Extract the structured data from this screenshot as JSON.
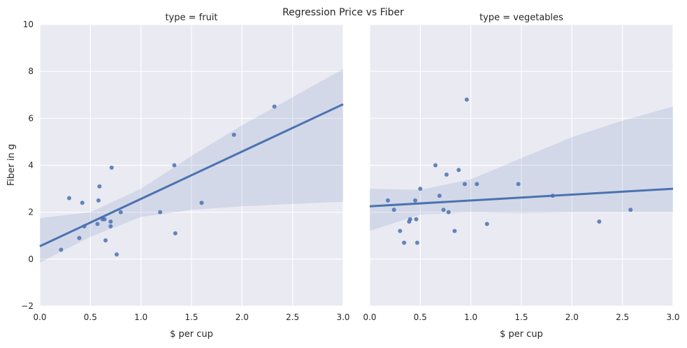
{
  "figure": {
    "suptitle": "Regression Price vs Fiber",
    "ylabel": "Fiber in g"
  },
  "colors": {
    "background": "#EAEAF2",
    "grid": "#FFFFFF",
    "points": "#4C72B0",
    "line": "#4C72B0",
    "band": "#4C72B0"
  },
  "chart_data": [
    {
      "type": "scatter",
      "title": "type = fruit",
      "xlabel": "$ per cup",
      "ylabel": "Fiber in g",
      "xlim": [
        0.0,
        3.0
      ],
      "ylim": [
        -2,
        10
      ],
      "xticks": [
        "0.0",
        "0.5",
        "1.0",
        "1.5",
        "2.0",
        "2.5",
        "3.0"
      ],
      "yticks": [
        "−2",
        "0",
        "2",
        "4",
        "6",
        "8",
        "10"
      ],
      "grid": true,
      "points": [
        {
          "x": 0.21,
          "y": 0.4
        },
        {
          "x": 0.29,
          "y": 2.6
        },
        {
          "x": 0.39,
          "y": 0.9
        },
        {
          "x": 0.42,
          "y": 2.4
        },
        {
          "x": 0.44,
          "y": 1.4
        },
        {
          "x": 0.57,
          "y": 1.5
        },
        {
          "x": 0.58,
          "y": 2.5
        },
        {
          "x": 0.59,
          "y": 3.1
        },
        {
          "x": 0.62,
          "y": 1.7
        },
        {
          "x": 0.64,
          "y": 1.7
        },
        {
          "x": 0.65,
          "y": 0.8
        },
        {
          "x": 0.7,
          "y": 1.6
        },
        {
          "x": 0.7,
          "y": 1.4
        },
        {
          "x": 0.71,
          "y": 3.9
        },
        {
          "x": 0.76,
          "y": 0.2
        },
        {
          "x": 0.8,
          "y": 2.0
        },
        {
          "x": 1.19,
          "y": 2.0
        },
        {
          "x": 1.33,
          "y": 4.0
        },
        {
          "x": 1.34,
          "y": 1.1
        },
        {
          "x": 1.6,
          "y": 2.4
        },
        {
          "x": 1.92,
          "y": 5.3
        },
        {
          "x": 2.32,
          "y": 6.5
        }
      ],
      "regression": {
        "x": [
          0.0,
          3.0
        ],
        "y": [
          0.55,
          6.6
        ]
      },
      "ci_band": {
        "x": [
          0.0,
          0.5,
          1.0,
          1.5,
          2.0,
          2.5,
          3.0
        ],
        "upper": [
          1.75,
          2.0,
          3.0,
          4.4,
          5.7,
          6.9,
          8.1
        ],
        "lower": [
          -0.15,
          0.95,
          1.8,
          2.1,
          2.25,
          2.35,
          2.45
        ]
      }
    },
    {
      "type": "scatter",
      "title": "type = vegetables",
      "xlabel": "$ per cup",
      "ylabel": "",
      "xlim": [
        0.0,
        3.0
      ],
      "ylim": [
        -2,
        10
      ],
      "xticks": [
        "0.0",
        "0.5",
        "1.0",
        "1.5",
        "2.0",
        "2.5",
        "3.0"
      ],
      "yticks": [],
      "grid": true,
      "points": [
        {
          "x": 0.18,
          "y": 2.5
        },
        {
          "x": 0.24,
          "y": 2.1
        },
        {
          "x": 0.3,
          "y": 1.2
        },
        {
          "x": 0.34,
          "y": 0.7
        },
        {
          "x": 0.39,
          "y": 1.6
        },
        {
          "x": 0.4,
          "y": 1.7
        },
        {
          "x": 0.45,
          "y": 2.5
        },
        {
          "x": 0.46,
          "y": 1.7
        },
        {
          "x": 0.47,
          "y": 0.7
        },
        {
          "x": 0.5,
          "y": 3.0
        },
        {
          "x": 0.65,
          "y": 4.0
        },
        {
          "x": 0.69,
          "y": 2.7
        },
        {
          "x": 0.73,
          "y": 2.1
        },
        {
          "x": 0.76,
          "y": 3.6
        },
        {
          "x": 0.78,
          "y": 2.0
        },
        {
          "x": 0.84,
          "y": 1.2
        },
        {
          "x": 0.88,
          "y": 3.8
        },
        {
          "x": 0.94,
          "y": 3.2
        },
        {
          "x": 0.96,
          "y": 6.8
        },
        {
          "x": 1.06,
          "y": 3.2
        },
        {
          "x": 1.16,
          "y": 1.5
        },
        {
          "x": 1.47,
          "y": 3.2
        },
        {
          "x": 1.81,
          "y": 2.7
        },
        {
          "x": 2.27,
          "y": 1.6
        },
        {
          "x": 2.58,
          "y": 2.1
        }
      ],
      "regression": {
        "x": [
          0.0,
          3.0
        ],
        "y": [
          2.25,
          3.0
        ]
      },
      "ci_band": {
        "x": [
          0.0,
          0.5,
          1.0,
          1.5,
          2.0,
          2.5,
          3.0
        ],
        "upper": [
          3.0,
          2.95,
          3.4,
          4.3,
          5.2,
          5.9,
          6.5
        ],
        "lower": [
          1.2,
          1.9,
          2.0,
          1.95,
          2.0,
          2.0,
          2.0
        ]
      }
    }
  ]
}
